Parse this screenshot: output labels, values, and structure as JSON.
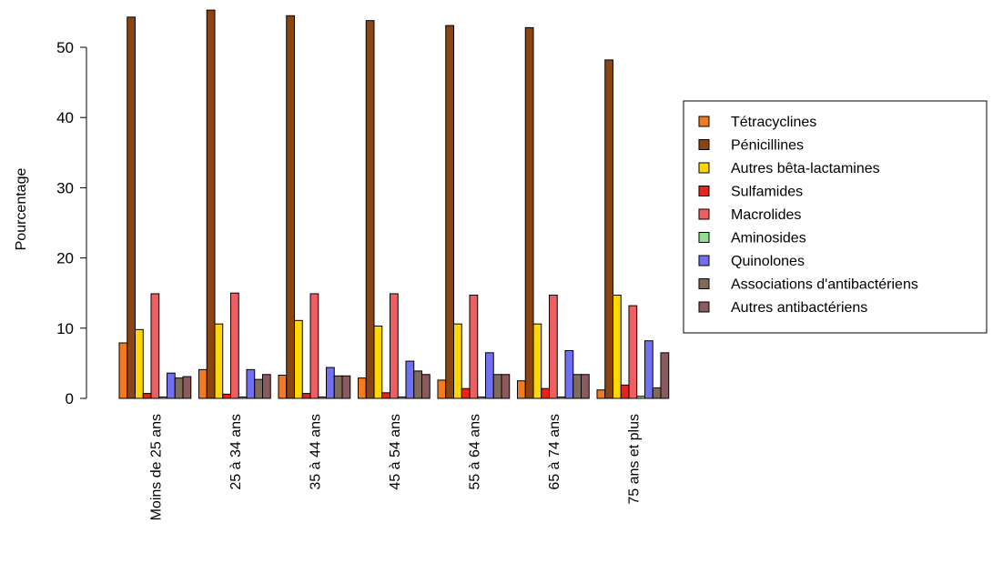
{
  "chart_data": {
    "type": "bar",
    "title": "",
    "xlabel": "",
    "ylabel": "Pourcentage",
    "ylim": [
      0,
      55.3
    ],
    "yticks": [
      0,
      10,
      20,
      30,
      40,
      50
    ],
    "grid": false,
    "legend_position": "right",
    "categories": [
      "Moins de 25 ans",
      "25 à 34 ans",
      "35 à 44 ans",
      "45 à 54 ans",
      "55 à 64 ans",
      "65 à 74 ans",
      "75 ans et plus"
    ],
    "series": [
      {
        "name": "Tétracyclines",
        "color": "#f47a20",
        "values": [
          7.9,
          4.1,
          3.3,
          2.9,
          2.6,
          2.5,
          1.2
        ]
      },
      {
        "name": "Pénicillines",
        "color": "#8b4513",
        "values": [
          54.3,
          55.3,
          54.5,
          53.8,
          53.1,
          52.8,
          48.2
        ]
      },
      {
        "name": "Autres bêta-lactamines",
        "color": "#ffd700",
        "values": [
          9.8,
          10.6,
          11.1,
          10.3,
          10.6,
          10.6,
          14.7
        ]
      },
      {
        "name": "Sulfamides",
        "color": "#e8231a",
        "values": [
          0.7,
          0.6,
          0.7,
          0.8,
          1.4,
          1.4,
          1.9
        ]
      },
      {
        "name": "Macrolides",
        "color": "#ef5f61",
        "values": [
          14.9,
          15.0,
          14.9,
          14.9,
          14.7,
          14.7,
          13.2
        ]
      },
      {
        "name": "Aminosides",
        "color": "#8fe08f",
        "values": [
          0.2,
          0.2,
          0.2,
          0.2,
          0.2,
          0.2,
          0.3
        ]
      },
      {
        "name": "Quinolones",
        "color": "#7070f0",
        "values": [
          3.6,
          4.1,
          4.4,
          5.3,
          6.5,
          6.8,
          8.2
        ]
      },
      {
        "name": "Associations d'antibactériens",
        "color": "#806a5a",
        "values": [
          2.9,
          2.7,
          3.2,
          3.9,
          3.4,
          3.4,
          1.5
        ]
      },
      {
        "name": "Autres antibactériens",
        "color": "#8a5a5e",
        "values": [
          3.1,
          3.4,
          3.2,
          3.4,
          3.4,
          3.4,
          6.5
        ]
      }
    ]
  }
}
